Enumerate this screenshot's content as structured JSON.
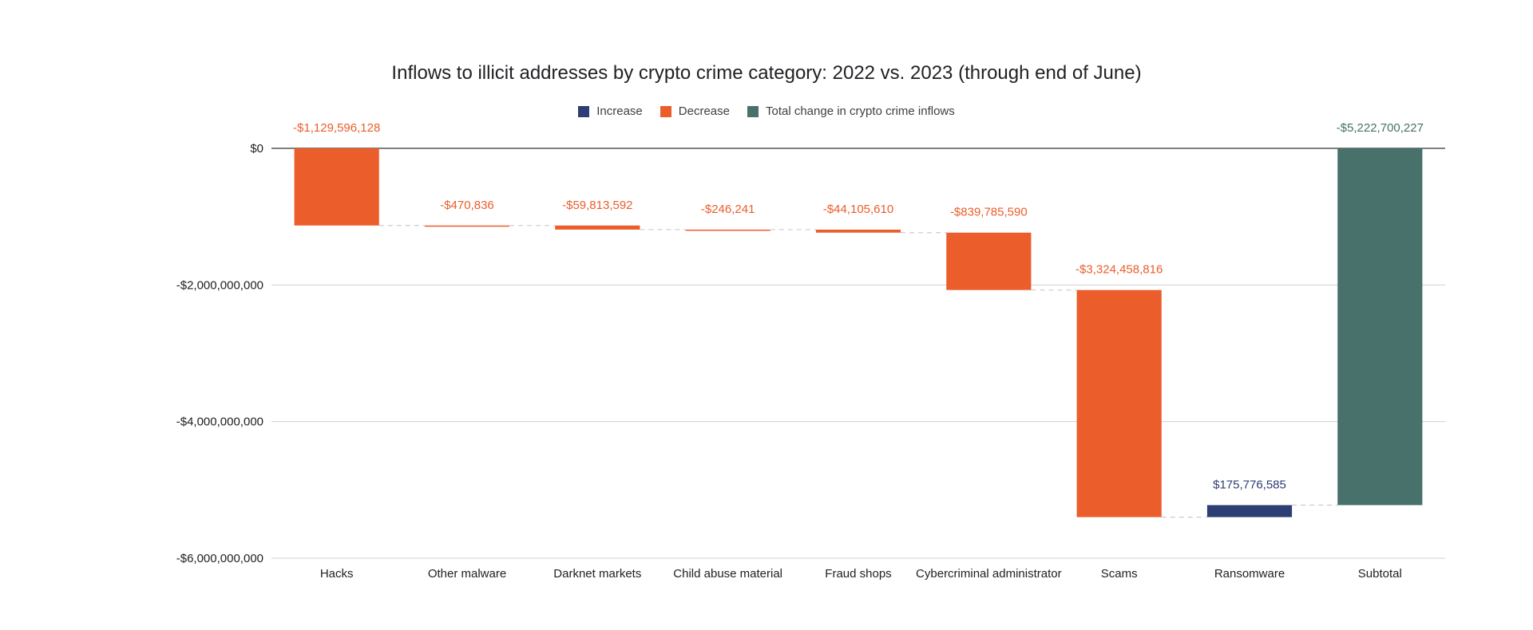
{
  "chart_data": {
    "type": "bar",
    "subtype": "waterfall",
    "title": "Inflows to illicit addresses by crypto crime category: 2022 vs. 2023 (through end of June)",
    "xlabel": "",
    "ylabel": "",
    "ylim": [
      -6000000000,
      0
    ],
    "yticks": [
      0,
      -2000000000,
      -4000000000,
      -6000000000
    ],
    "ytick_labels": [
      "$0",
      "-$2,000,000,000",
      "-$4,000,000,000",
      "-$6,000,000,000"
    ],
    "grid": true,
    "legend_position": "top",
    "legend": [
      {
        "label": "Increase",
        "color": "#2c3e73"
      },
      {
        "label": "Decrease",
        "color": "#eb5d2b"
      },
      {
        "label": "Total change in crypto crime inflows",
        "color": "#47716a"
      }
    ],
    "categories": [
      "Hacks",
      "Other malware",
      "Darknet markets",
      "Child abuse material",
      "Fraud shops",
      "Cybercriminal administrator",
      "Scams",
      "Ransomware",
      "Subtotal"
    ],
    "values": [
      -1129596128,
      -470836,
      -59813592,
      -246241,
      -44105610,
      -839785590,
      -3324458816,
      175776585,
      -5222700227
    ],
    "labels": [
      "-$1,129,596,128",
      "-$470,836",
      "-$59,813,592",
      "-$246,241",
      "-$44,105,610",
      "-$839,785,590",
      "-$3,324,458,816",
      "$175,776,585",
      "-$5,222,700,227"
    ],
    "kinds": [
      "decrease",
      "decrease",
      "decrease",
      "decrease",
      "decrease",
      "decrease",
      "decrease",
      "increase",
      "total"
    ]
  }
}
